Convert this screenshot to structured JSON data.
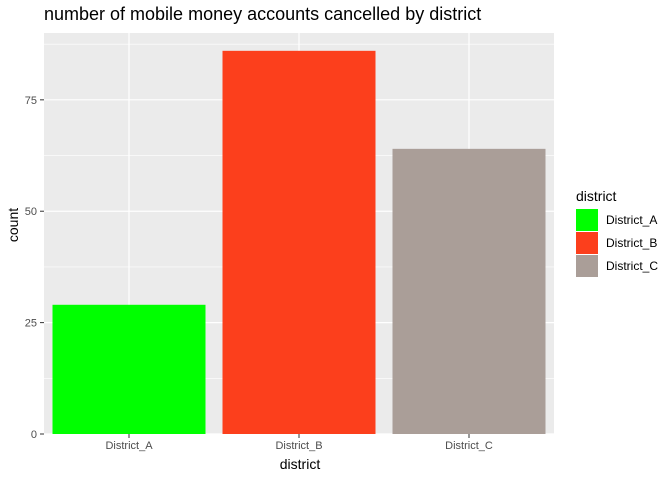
{
  "chart_data": {
    "type": "bar",
    "title": "number of mobile money accounts cancelled by district",
    "xlabel": "district",
    "ylabel": "count",
    "categories": [
      "District_A",
      "District_B",
      "District_C"
    ],
    "values": [
      29,
      86,
      64
    ],
    "colors": [
      "#00FF00",
      "#FC3F1C",
      "#AA9E98"
    ],
    "ylim": [
      0,
      90
    ],
    "yticks": [
      "0",
      "25",
      "50",
      "75"
    ],
    "grid": true,
    "legend": {
      "title": "district",
      "position": "right",
      "entries": [
        "District_A",
        "District_B",
        "District_C"
      ]
    },
    "background": "#EBEBEB"
  }
}
